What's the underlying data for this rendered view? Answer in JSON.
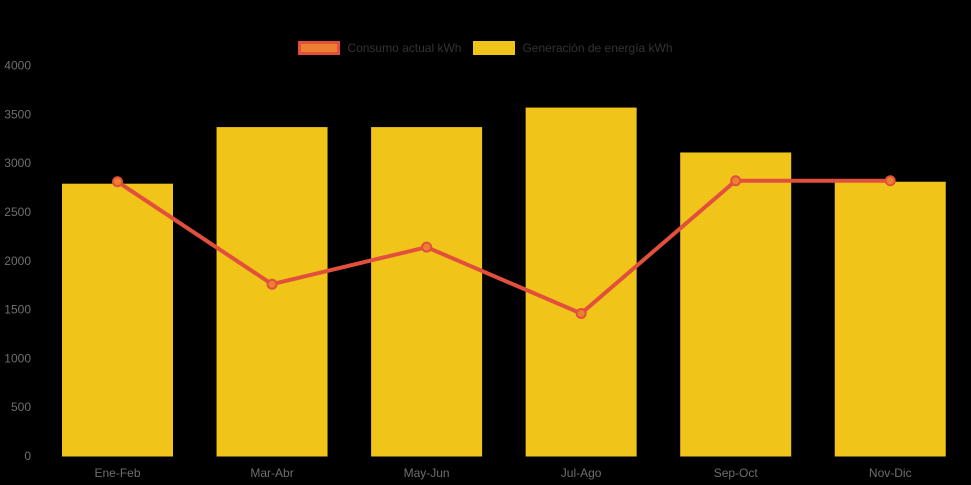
{
  "background": "#000000",
  "chart_data": {
    "type": "bar",
    "subtype": "combo-bar-line",
    "title": "",
    "xlabel": "",
    "ylabel": "",
    "categories": [
      "Ene-Feb",
      "Mar-Abr",
      "May-Jun",
      "Jul-Ago",
      "Sep-Oct",
      "Nov-Dic"
    ],
    "series": [
      {
        "name": "Consumo actual kWh",
        "type": "line",
        "color": "#E2503D",
        "marker_fill": "#EC8030",
        "values": [
          2810,
          1760,
          2140,
          1460,
          2820,
          2820
        ]
      },
      {
        "name": "Generación de energía kWh",
        "type": "bar",
        "color": "#F0C419",
        "values": [
          2790,
          3370,
          3370,
          3570,
          3110,
          2810
        ]
      }
    ],
    "ylim": [
      0,
      4000
    ],
    "yticks": [
      0,
      500,
      1000,
      1500,
      2000,
      2500,
      3000,
      3500,
      4000
    ],
    "grid": false,
    "legend_position": "top",
    "axis_label_color": "#6E6E6E",
    "legend_text_color": "#333333"
  }
}
